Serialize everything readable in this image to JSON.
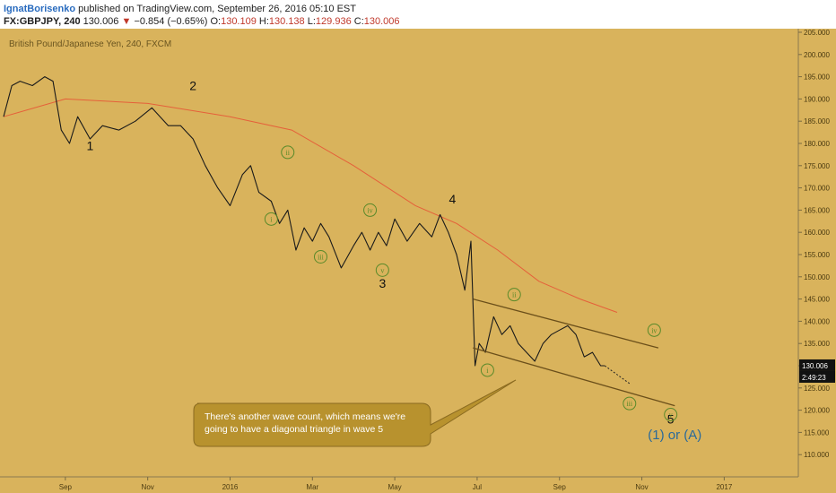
{
  "header": {
    "author": "IgnatBorisenko",
    "published": "published on TradingView.com, September 26, 2016 05:10 EST",
    "symbol": "FX:GBPJPY, 240",
    "last": "130.006",
    "change": "−0.854 (−0.65%)",
    "o_label": "O:",
    "o": "130.109",
    "h_label": "H:",
    "h": "130.138",
    "l_label": "L:",
    "l": "129.936",
    "c_label": "C:",
    "c": "130.006"
  },
  "colors": {
    "background": "#d9b35c",
    "price_line": "#1a1a1a",
    "moving_average": "#e5603a",
    "channel": "#6b4f1a",
    "minor_label": "#5a8a2a",
    "callout_bg": "#b8922e",
    "callout_border": "#8a6a20",
    "wave_a_label": "#2a6a9a",
    "last_price_box": "#111111"
  },
  "chart_data": {
    "type": "line",
    "title": "British Pound/Japanese Yen, 240, FXCM",
    "ylim": [
      105,
      205
    ],
    "yticks": [
      "110.000",
      "115.000",
      "120.000",
      "125.000",
      "130.000",
      "135.000",
      "140.000",
      "145.000",
      "150.000",
      "155.000",
      "160.000",
      "165.000",
      "170.000",
      "175.000",
      "180.000",
      "185.000",
      "190.000",
      "195.000",
      "200.000",
      "205.000"
    ],
    "xticks": [
      {
        "label": "Sep",
        "t": 1.5
      },
      {
        "label": "Nov",
        "t": 3.5
      },
      {
        "label": "2016",
        "t": 5.5
      },
      {
        "label": "Mar",
        "t": 7.5
      },
      {
        "label": "May",
        "t": 9.5
      },
      {
        "label": "Jul",
        "t": 11.5
      },
      {
        "label": "Sep",
        "t": 13.5
      },
      {
        "label": "Nov",
        "t": 15.5
      },
      {
        "label": "2017",
        "t": 17.5
      }
    ],
    "xlim": [
      0,
      19.3
    ],
    "series": [
      {
        "x": [
          0,
          0.2,
          0.4,
          0.7,
          1.0,
          1.2,
          1.4,
          1.6,
          1.8,
          2.1,
          2.4,
          2.8,
          3.2,
          3.6,
          4.0,
          4.3,
          4.6,
          4.9,
          5.2,
          5.5,
          5.8,
          6.0,
          6.2,
          6.5,
          6.7,
          6.9,
          7.1,
          7.3,
          7.5,
          7.7,
          7.9,
          8.2,
          8.5,
          8.7,
          8.9,
          9.1,
          9.3,
          9.5,
          9.8,
          10.1,
          10.4,
          10.6,
          10.8,
          11.0,
          11.2,
          11.35,
          11.45,
          11.55,
          11.7,
          11.9,
          12.1,
          12.3,
          12.5,
          12.7,
          12.9,
          13.1,
          13.3,
          13.5,
          13.7,
          13.9,
          14.1,
          14.3,
          14.5,
          14.6
        ],
        "values": [
          186,
          193,
          194,
          193,
          195,
          194,
          183,
          180,
          186,
          181,
          184,
          183,
          185,
          188,
          184,
          184,
          181,
          175,
          170,
          166,
          173,
          175,
          169,
          167,
          162,
          165,
          156,
          161,
          158,
          162,
          159,
          152,
          157,
          160,
          156,
          160,
          157,
          163,
          158,
          162,
          159,
          164,
          160,
          155,
          147,
          158,
          130,
          135,
          133,
          141,
          137,
          139,
          135,
          133,
          131,
          135,
          137,
          138,
          139,
          137,
          132,
          133,
          130,
          130
        ]
      },
      {
        "name": "",
        "x": [
          0,
          1.5,
          3.5,
          5.5,
          7.0,
          8.5,
          10.0,
          11.0,
          12.0,
          13.0,
          14.0,
          14.9
        ],
        "values": [
          186,
          190,
          189,
          186,
          183,
          175,
          166,
          162,
          156,
          149,
          145,
          142
        ]
      }
    ],
    "last_price": 130.006,
    "last_price_label": "130.006",
    "countdown_label": "2:49:23",
    "projection": {
      "x": [
        14.6,
        15.2
      ],
      "values": [
        130,
        126
      ]
    },
    "channel_lines": [
      {
        "x": [
          11.4,
          15.9
        ],
        "values": [
          145,
          134
        ]
      },
      {
        "x": [
          11.4,
          16.3
        ],
        "values": [
          134,
          121
        ]
      }
    ],
    "wave_labels_major": [
      {
        "text": "1",
        "x": 2.1,
        "y": 178.5
      },
      {
        "text": "2",
        "x": 4.6,
        "y": 192
      },
      {
        "text": "3",
        "x": 9.2,
        "y": 147.5
      },
      {
        "text": "4",
        "x": 10.9,
        "y": 166.5
      },
      {
        "text": "5",
        "x": 16.2,
        "y": 117
      }
    ],
    "wave_labels_minor": [
      {
        "text": "i",
        "x": 6.5,
        "y": 163
      },
      {
        "text": "ii",
        "x": 6.9,
        "y": 178
      },
      {
        "text": "iii",
        "x": 7.7,
        "y": 154.5
      },
      {
        "text": "iv",
        "x": 8.9,
        "y": 165
      },
      {
        "text": "v",
        "x": 9.2,
        "y": 151.5
      },
      {
        "text": "i",
        "x": 11.75,
        "y": 129
      },
      {
        "text": "ii",
        "x": 12.4,
        "y": 146
      },
      {
        "text": "iii",
        "x": 15.2,
        "y": 121.5
      },
      {
        "text": "iv",
        "x": 15.8,
        "y": 138
      },
      {
        "text": "v",
        "x": 16.2,
        "y": 119
      }
    ],
    "wave_a_label": {
      "text": "(1) or (A)",
      "x": 16.3,
      "y": 113.5
    },
    "annotation": {
      "text_line1": "There's another wave count, which means we're",
      "text_line2": "going to have a diagonal triangle in wave 5"
    }
  }
}
